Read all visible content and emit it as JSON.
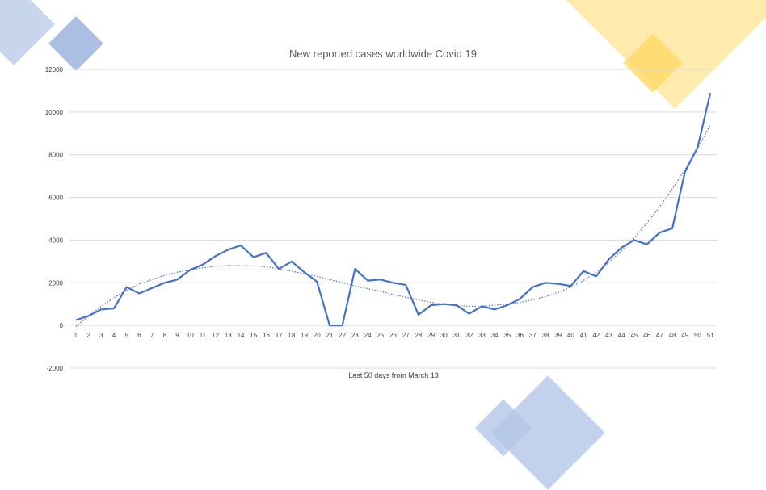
{
  "colors": {
    "series": "#4472c4",
    "trend": "#4472c4",
    "grid": "#d9d9d9",
    "deco_blue": "#b4c7e7",
    "deco_blue_dark": "#8faadc",
    "deco_yellow": "#ffe699",
    "deco_yellow_dark": "#ffd966"
  },
  "chart_data": {
    "type": "line",
    "title": "New reported cases worldwide Covid 19",
    "xlabel": "Last 50 days from March 13",
    "ylabel": "",
    "ylim": [
      -2000,
      12000
    ],
    "yticks": [
      -2000,
      0,
      2000,
      4000,
      6000,
      8000,
      10000,
      12000
    ],
    "grid": true,
    "legend": "none",
    "categories": [
      "1",
      "2",
      "3",
      "4",
      "5",
      "6",
      "7",
      "8",
      "9",
      "10",
      "11",
      "12",
      "13",
      "14",
      "15",
      "16",
      "17",
      "18",
      "19",
      "20",
      "21",
      "22",
      "23",
      "24",
      "25",
      "26",
      "27",
      "28",
      "29",
      "30",
      "31",
      "32",
      "33",
      "34",
      "35",
      "36",
      "37",
      "38",
      "39",
      "40",
      "41",
      "42",
      "43",
      "44",
      "45",
      "46",
      "47",
      "48",
      "49",
      "50",
      "51"
    ],
    "series": [
      {
        "values": [
          250,
          450,
          750,
          800,
          1800,
          1500,
          1750,
          2000,
          2150,
          2600,
          2850,
          3250,
          3550,
          3750,
          3200,
          3400,
          2650,
          3000,
          2500,
          2050,
          0,
          0,
          2650,
          2100,
          2150,
          2000,
          1900,
          500,
          950,
          1000,
          950,
          550,
          900,
          750,
          950,
          1250,
          1800,
          2000,
          1950,
          1850,
          2550,
          2300,
          3100,
          3650,
          4000,
          3800,
          4350,
          4550,
          7200,
          8350,
          10900
        ],
        "style": "solid"
      },
      {
        "values": [
          -50,
          450,
          900,
          1300,
          1650,
          1950,
          2150,
          2350,
          2500,
          2600,
          2700,
          2780,
          2800,
          2800,
          2790,
          2750,
          2650,
          2550,
          2420,
          2300,
          2150,
          2000,
          1850,
          1720,
          1600,
          1450,
          1320,
          1200,
          1080,
          980,
          920,
          900,
          900,
          950,
          1000,
          1080,
          1200,
          1350,
          1550,
          1800,
          2100,
          2500,
          2950,
          3500,
          4100,
          4800,
          5550,
          6400,
          7300,
          8300,
          9400
        ],
        "style": "dotted"
      }
    ]
  }
}
